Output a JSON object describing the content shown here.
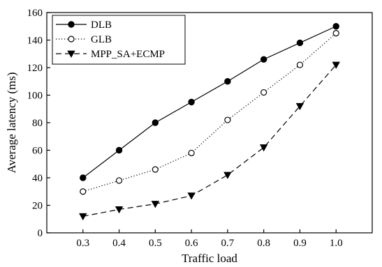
{
  "chart_data": {
    "type": "line",
    "title": "",
    "xlabel": "Traffic load",
    "ylabel": "Average latency (ms)",
    "x": [
      0.3,
      0.4,
      0.5,
      0.6,
      0.7,
      0.8,
      0.9,
      1.0
    ],
    "x_tick_labels": [
      "0.3",
      "0.4",
      "0.5",
      "0.6",
      "0.7",
      "0.8",
      "0.9",
      "1.0"
    ],
    "xlim": [
      0.2,
      1.1
    ],
    "ylim": [
      0,
      160
    ],
    "y_ticks": [
      0,
      20,
      40,
      60,
      80,
      100,
      120,
      140,
      160
    ],
    "y_tick_labels": [
      "0",
      "20",
      "40",
      "60",
      "80",
      "100",
      "120",
      "140",
      "160"
    ],
    "grid": false,
    "legend_position": "top-left",
    "series": [
      {
        "name": "DLB",
        "values": [
          40,
          60,
          80,
          95,
          110,
          126,
          138,
          150
        ],
        "line_style": "solid",
        "marker": "filled-circle",
        "color": "#000000"
      },
      {
        "name": "GLB",
        "values": [
          30,
          38,
          46,
          58,
          82,
          102,
          122,
          145
        ],
        "line_style": "dotted",
        "marker": "open-circle",
        "color": "#000000"
      },
      {
        "name": "MPP_SA+ECMP",
        "values": [
          12,
          17,
          21,
          27,
          42,
          62,
          92,
          122
        ],
        "line_style": "dashed",
        "marker": "filled-triangle-down",
        "color": "#000000"
      }
    ]
  }
}
